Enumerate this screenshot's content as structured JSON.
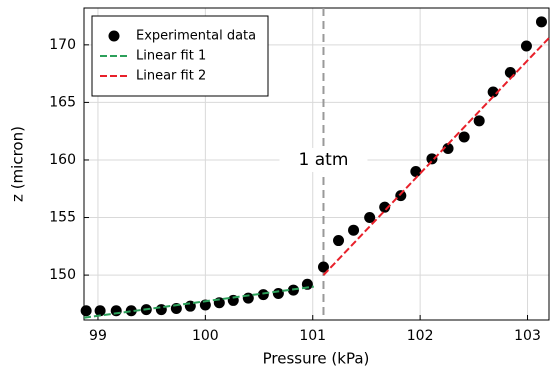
{
  "chart_data": {
    "type": "scatter",
    "xlabel": "Pressure (kPa)",
    "ylabel": "z (micron)",
    "xlim": [
      98.87,
      103.2
    ],
    "ylim": [
      146.1,
      173.2
    ],
    "xticks": [
      99,
      100,
      101,
      102,
      103
    ],
    "yticks": [
      150,
      155,
      160,
      165,
      170
    ],
    "grid": true,
    "legend": "upper left",
    "reference_line": {
      "x": 101.1,
      "label": "1 atm",
      "label_y": 160,
      "color": "#999999"
    },
    "series": [
      {
        "name": "Experimental data",
        "type": "scatter",
        "color": "#000000",
        "x": [
          98.89,
          99.02,
          99.17,
          99.31,
          99.45,
          99.59,
          99.73,
          99.86,
          100.0,
          100.13,
          100.26,
          100.4,
          100.54,
          100.68,
          100.82,
          100.95,
          101.1,
          101.24,
          101.38,
          101.53,
          101.67,
          101.82,
          101.96,
          102.11,
          102.26,
          102.41,
          102.55,
          102.68,
          102.84,
          102.99,
          103.13
        ],
        "values": [
          146.9,
          146.9,
          146.9,
          146.9,
          147.0,
          147.0,
          147.1,
          147.3,
          147.4,
          147.6,
          147.8,
          148.0,
          148.3,
          148.4,
          148.7,
          149.2,
          150.7,
          153.0,
          153.9,
          155.0,
          155.9,
          156.9,
          159.0,
          160.1,
          161.0,
          162.0,
          163.4,
          165.9,
          167.6,
          169.9,
          172.0
        ]
      },
      {
        "name": "Linear fit 1",
        "type": "line",
        "color": "#2ca05a",
        "x": [
          98.87,
          101.01
        ],
        "values": [
          146.3,
          149.0
        ]
      },
      {
        "name": "Linear fit 2",
        "type": "line",
        "color": "#e8202a",
        "x": [
          101.1,
          103.2
        ],
        "values": [
          150.0,
          170.6
        ]
      }
    ]
  }
}
